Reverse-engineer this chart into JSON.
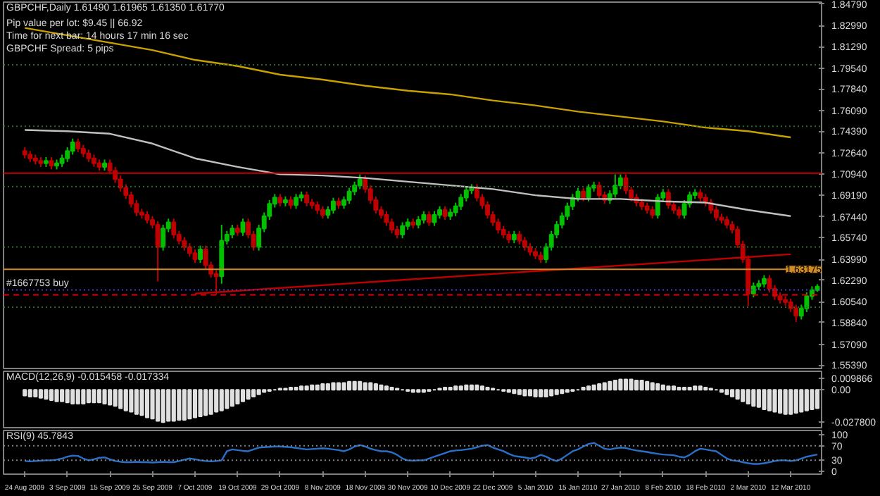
{
  "chart_data": [
    {
      "type": "candlestick",
      "title": "GBPCHF,Daily 1.61490 1.61965 1.61350 1.61770",
      "annotations": [
        "Pip value per lot: $9.45 || 66.92",
        "Time for next bar: 14 hours 17 min 16 sec",
        "GBPCHF Spread: 5 pips"
      ],
      "categories": [
        "24 Aug 2009",
        null,
        null,
        null,
        null,
        null,
        null,
        null,
        "3 Sep 2009",
        null,
        null,
        null,
        null,
        null,
        null,
        null,
        "15 Sep 2009",
        null,
        null,
        null,
        null,
        null,
        null,
        null,
        "25 Sep 2009",
        null,
        null,
        null,
        null,
        null,
        null,
        null,
        "7 Oct 2009",
        null,
        null,
        null,
        null,
        null,
        null,
        null,
        "19 Oct 2009",
        null,
        null,
        null,
        null,
        null,
        null,
        null,
        "29 Oct 2009",
        null,
        null,
        null,
        null,
        null,
        null,
        null,
        "8 Nov 2009",
        null,
        null,
        null,
        null,
        null,
        null,
        null,
        "18 Nov 2009",
        null,
        null,
        null,
        null,
        null,
        null,
        null,
        "30 Nov 2009",
        null,
        null,
        null,
        null,
        null,
        null,
        null,
        "10 Dec 2009",
        null,
        null,
        null,
        null,
        null,
        null,
        null,
        "22 Dec 2009",
        null,
        null,
        null,
        null,
        null,
        null,
        null,
        "5 Jan 2010",
        null,
        null,
        null,
        null,
        null,
        null,
        null,
        "15 Jan 2010",
        null,
        null,
        null,
        null,
        null,
        null,
        null,
        "27 Jan 2010",
        null,
        null,
        null,
        null,
        null,
        null,
        null,
        "8 Feb 2010",
        null,
        null,
        null,
        null,
        null,
        null,
        null,
        "18 Feb 2010",
        null,
        null,
        null,
        null,
        null,
        null,
        null,
        "2 Mar 2010",
        null,
        null,
        null,
        null,
        null,
        null,
        null,
        "12 Mar 2010",
        null,
        null,
        null,
        null,
        null
      ],
      "colors": [
        "#c00000",
        "#c00000",
        "#c00000",
        "#c00000",
        "#00c000",
        "#c00000",
        "#00c000",
        "#00c000",
        "#00c000",
        "#00c000",
        "#c00000",
        "#c00000",
        "#c00000",
        "#c00000",
        "#c00000",
        "#00c000",
        "#c00000",
        "#c00000",
        "#c00000",
        "#c00000",
        "#c00000",
        "#c00000",
        "#c00000",
        "#c00000",
        "#c00000",
        "#c00000",
        "#00c000",
        "#00c000",
        "#c00000",
        "#c00000",
        "#c00000",
        "#c00000",
        "#c00000",
        "#00c000",
        "#c00000",
        "#c00000",
        "#c00000",
        "#00c000",
        "#00c000",
        "#00c000",
        "#c00000",
        "#00c000",
        "#c00000",
        "#c00000",
        "#00c000",
        "#00c000",
        "#00c000",
        "#00c000",
        "#c00000",
        "#00c000",
        "#c00000",
        "#00c000",
        "#00c000",
        "#c00000",
        "#c00000",
        "#c00000",
        "#c00000",
        "#00c000",
        "#00c000",
        "#c00000",
        "#00c000",
        "#00c000",
        "#00c000",
        "#00c000",
        "#c00000",
        "#c00000",
        "#c00000",
        "#c00000",
        "#c00000",
        "#c00000",
        "#c00000",
        "#00c000",
        "#00c000",
        "#c00000",
        "#00c000",
        "#00c000",
        "#c00000",
        "#00c000",
        "#00c000",
        "#c00000",
        "#00c000",
        "#00c000",
        "#00c000",
        "#00c000",
        "#00c000",
        "#c00000",
        "#c00000",
        "#c00000",
        "#c00000",
        "#c00000",
        "#c00000",
        "#c00000",
        "#00c000",
        "#c00000",
        "#c00000",
        "#c00000",
        "#c00000",
        "#c00000",
        "#00c000",
        "#00c000",
        "#00c000",
        "#00c000",
        "#00c000",
        "#00c000",
        "#00c000",
        "#c00000",
        "#00c000",
        "#00c000",
        "#c00000",
        "#c00000",
        "#00c000",
        "#00c000",
        "#00c000",
        "#c00000",
        "#c00000",
        "#c00000",
        "#c00000",
        "#c00000",
        "#c00000",
        "#00c000",
        "#00c000",
        "#c00000",
        "#c00000",
        "#c00000",
        "#00c000",
        "#00c000",
        "#00c000",
        "#c00000",
        "#c00000",
        "#c00000",
        "#c00000",
        "#c00000",
        "#c00000",
        "#c00000",
        "#c00000",
        "#c00000",
        "#c00000",
        "#00c000",
        "#00c000",
        "#00c000",
        "#c00000",
        "#c00000",
        "#c00000",
        "#c00000",
        "#c00000",
        "#c00000",
        "#00c000",
        "#00c000",
        "#00c000",
        "#00c000"
      ],
      "ohlc": [
        [
          1.728,
          1.731,
          1.722,
          1.725
        ],
        [
          1.725,
          1.728,
          1.719,
          1.722
        ],
        [
          1.722,
          1.725,
          1.717,
          1.72
        ],
        [
          1.72,
          1.723,
          1.715,
          1.718
        ],
        [
          1.718,
          1.723,
          1.715,
          1.72
        ],
        [
          1.72,
          1.723,
          1.713,
          1.716
        ],
        [
          1.716,
          1.721,
          1.713,
          1.718
        ],
        [
          1.718,
          1.725,
          1.715,
          1.722
        ],
        [
          1.722,
          1.731,
          1.719,
          1.728
        ],
        [
          1.728,
          1.738,
          1.725,
          1.735
        ],
        [
          1.735,
          1.738,
          1.727,
          1.73
        ],
        [
          1.73,
          1.733,
          1.723,
          1.726
        ],
        [
          1.726,
          1.729,
          1.719,
          1.722
        ],
        [
          1.722,
          1.725,
          1.715,
          1.718
        ],
        [
          1.718,
          1.721,
          1.712,
          1.715
        ],
        [
          1.715,
          1.721,
          1.712,
          1.718
        ],
        [
          1.718,
          1.721,
          1.709,
          1.712
        ],
        [
          1.712,
          1.715,
          1.702,
          1.705
        ],
        [
          1.705,
          1.708,
          1.695,
          1.698
        ],
        [
          1.698,
          1.701,
          1.689,
          1.692
        ],
        [
          1.692,
          1.695,
          1.682,
          1.685
        ],
        [
          1.685,
          1.688,
          1.675,
          1.678
        ],
        [
          1.678,
          1.681,
          1.673,
          1.676
        ],
        [
          1.676,
          1.679,
          1.669,
          1.672
        ],
        [
          1.672,
          1.675,
          1.665,
          1.668
        ],
        [
          1.668,
          1.671,
          1.622,
          1.65
        ],
        [
          1.65,
          1.668,
          1.647,
          1.665
        ],
        [
          1.665,
          1.673,
          1.662,
          1.67
        ],
        [
          1.67,
          1.673,
          1.657,
          1.66
        ],
        [
          1.66,
          1.663,
          1.652,
          1.655
        ],
        [
          1.655,
          1.658,
          1.647,
          1.65
        ],
        [
          1.65,
          1.653,
          1.642,
          1.645
        ],
        [
          1.645,
          1.648,
          1.637,
          1.64
        ],
        [
          1.64,
          1.651,
          1.637,
          1.648
        ],
        [
          1.648,
          1.651,
          1.632,
          1.635
        ],
        [
          1.635,
          1.638,
          1.625,
          1.628
        ],
        [
          1.628,
          1.631,
          1.611,
          1.626
        ],
        [
          1.626,
          1.668,
          1.62,
          1.655
        ],
        [
          1.655,
          1.663,
          1.652,
          1.66
        ],
        [
          1.66,
          1.668,
          1.657,
          1.665
        ],
        [
          1.665,
          1.668,
          1.659,
          1.662
        ],
        [
          1.662,
          1.673,
          1.659,
          1.67
        ],
        [
          1.67,
          1.673,
          1.657,
          1.66
        ],
        [
          1.66,
          1.663,
          1.647,
          1.65
        ],
        [
          1.65,
          1.668,
          1.647,
          1.665
        ],
        [
          1.665,
          1.678,
          1.662,
          1.675
        ],
        [
          1.675,
          1.688,
          1.672,
          1.685
        ],
        [
          1.685,
          1.693,
          1.682,
          1.69
        ],
        [
          1.69,
          1.693,
          1.683,
          1.686
        ],
        [
          1.686,
          1.691,
          1.683,
          1.688
        ],
        [
          1.688,
          1.691,
          1.681,
          1.684
        ],
        [
          1.684,
          1.693,
          1.681,
          1.69
        ],
        [
          1.69,
          1.695,
          1.687,
          1.692
        ],
        [
          1.692,
          1.695,
          1.683,
          1.686
        ],
        [
          1.686,
          1.689,
          1.681,
          1.684
        ],
        [
          1.684,
          1.687,
          1.677,
          1.68
        ],
        [
          1.68,
          1.683,
          1.673,
          1.676
        ],
        [
          1.676,
          1.683,
          1.673,
          1.68
        ],
        [
          1.68,
          1.69,
          1.677,
          1.687
        ],
        [
          1.687,
          1.69,
          1.681,
          1.684
        ],
        [
          1.684,
          1.691,
          1.681,
          1.688
        ],
        [
          1.688,
          1.698,
          1.685,
          1.695
        ],
        [
          1.695,
          1.703,
          1.692,
          1.7
        ],
        [
          1.7,
          1.709,
          1.697,
          1.705
        ],
        [
          1.705,
          1.708,
          1.694,
          1.697
        ],
        [
          1.697,
          1.7,
          1.685,
          1.688
        ],
        [
          1.688,
          1.691,
          1.677,
          1.68
        ],
        [
          1.68,
          1.683,
          1.673,
          1.676
        ],
        [
          1.676,
          1.679,
          1.667,
          1.67
        ],
        [
          1.67,
          1.673,
          1.661,
          1.664
        ],
        [
          1.664,
          1.667,
          1.657,
          1.66
        ],
        [
          1.66,
          1.67,
          1.657,
          1.667
        ],
        [
          1.667,
          1.673,
          1.664,
          1.67
        ],
        [
          1.67,
          1.673,
          1.665,
          1.668
        ],
        [
          1.668,
          1.675,
          1.665,
          1.672
        ],
        [
          1.672,
          1.679,
          1.669,
          1.676
        ],
        [
          1.676,
          1.679,
          1.667,
          1.67
        ],
        [
          1.67,
          1.679,
          1.667,
          1.676
        ],
        [
          1.676,
          1.683,
          1.673,
          1.68
        ],
        [
          1.68,
          1.683,
          1.672,
          1.675
        ],
        [
          1.675,
          1.681,
          1.672,
          1.678
        ],
        [
          1.678,
          1.686,
          1.675,
          1.683
        ],
        [
          1.683,
          1.693,
          1.68,
          1.69
        ],
        [
          1.69,
          1.699,
          1.687,
          1.696
        ],
        [
          1.696,
          1.701,
          1.693,
          1.698
        ],
        [
          1.698,
          1.701,
          1.687,
          1.69
        ],
        [
          1.69,
          1.693,
          1.681,
          1.684
        ],
        [
          1.684,
          1.687,
          1.673,
          1.676
        ],
        [
          1.676,
          1.679,
          1.667,
          1.67
        ],
        [
          1.67,
          1.673,
          1.661,
          1.664
        ],
        [
          1.664,
          1.667,
          1.657,
          1.66
        ],
        [
          1.66,
          1.663,
          1.653,
          1.656
        ],
        [
          1.656,
          1.663,
          1.653,
          1.66
        ],
        [
          1.66,
          1.663,
          1.652,
          1.655
        ],
        [
          1.655,
          1.658,
          1.647,
          1.65
        ],
        [
          1.65,
          1.653,
          1.643,
          1.646
        ],
        [
          1.646,
          1.649,
          1.64,
          1.643
        ],
        [
          1.643,
          1.646,
          1.637,
          1.64
        ],
        [
          1.64,
          1.653,
          1.637,
          1.65
        ],
        [
          1.65,
          1.663,
          1.647,
          1.66
        ],
        [
          1.66,
          1.671,
          1.657,
          1.668
        ],
        [
          1.668,
          1.678,
          1.665,
          1.675
        ],
        [
          1.675,
          1.686,
          1.672,
          1.683
        ],
        [
          1.683,
          1.693,
          1.68,
          1.69
        ],
        [
          1.69,
          1.698,
          1.687,
          1.695
        ],
        [
          1.695,
          1.698,
          1.687,
          1.69
        ],
        [
          1.69,
          1.701,
          1.687,
          1.698
        ],
        [
          1.698,
          1.703,
          1.695,
          1.7
        ],
        [
          1.7,
          1.703,
          1.689,
          1.692
        ],
        [
          1.692,
          1.695,
          1.685,
          1.688
        ],
        [
          1.688,
          1.696,
          1.685,
          1.693
        ],
        [
          1.693,
          1.709,
          1.69,
          1.7
        ],
        [
          1.7,
          1.709,
          1.697,
          1.706
        ],
        [
          1.706,
          1.709,
          1.693,
          1.696
        ],
        [
          1.696,
          1.699,
          1.687,
          1.69
        ],
        [
          1.69,
          1.693,
          1.683,
          1.686
        ],
        [
          1.686,
          1.689,
          1.68,
          1.683
        ],
        [
          1.683,
          1.686,
          1.677,
          1.68
        ],
        [
          1.68,
          1.683,
          1.673,
          1.676
        ],
        [
          1.676,
          1.693,
          1.673,
          1.69
        ],
        [
          1.69,
          1.697,
          1.687,
          1.694
        ],
        [
          1.694,
          1.697,
          1.681,
          1.684
        ],
        [
          1.684,
          1.687,
          1.677,
          1.68
        ],
        [
          1.68,
          1.683,
          1.673,
          1.676
        ],
        [
          1.676,
          1.688,
          1.673,
          1.685
        ],
        [
          1.685,
          1.695,
          1.682,
          1.692
        ],
        [
          1.692,
          1.697,
          1.689,
          1.694
        ],
        [
          1.694,
          1.697,
          1.687,
          1.69
        ],
        [
          1.69,
          1.693,
          1.683,
          1.686
        ],
        [
          1.686,
          1.689,
          1.677,
          1.68
        ],
        [
          1.68,
          1.683,
          1.671,
          1.674
        ],
        [
          1.674,
          1.677,
          1.669,
          1.672
        ],
        [
          1.672,
          1.675,
          1.665,
          1.668
        ],
        [
          1.668,
          1.671,
          1.661,
          1.664
        ],
        [
          1.664,
          1.667,
          1.649,
          1.652
        ],
        [
          1.652,
          1.655,
          1.637,
          1.64
        ],
        [
          1.64,
          1.643,
          1.602,
          1.612
        ],
        [
          1.612,
          1.621,
          1.609,
          1.618
        ],
        [
          1.618,
          1.623,
          1.615,
          1.62
        ],
        [
          1.62,
          1.627,
          1.617,
          1.624
        ],
        [
          1.624,
          1.627,
          1.613,
          1.616
        ],
        [
          1.616,
          1.619,
          1.607,
          1.61
        ],
        [
          1.61,
          1.613,
          1.604,
          1.607
        ],
        [
          1.607,
          1.61,
          1.602,
          1.605
        ],
        [
          1.605,
          1.608,
          1.597,
          1.6
        ],
        [
          1.6,
          1.603,
          1.589,
          1.594
        ],
        [
          1.594,
          1.603,
          1.591,
          1.6
        ],
        [
          1.6,
          1.613,
          1.597,
          1.61
        ],
        [
          1.61,
          1.618,
          1.607,
          1.6149
        ],
        [
          1.6149,
          1.61965,
          1.6135,
          1.6177
        ]
      ],
      "series": [
        {
          "type": "line",
          "color": "#c8a000",
          "x": [
            "24 Aug 2009",
            "3 Sep 2009",
            "15 Sep 2009",
            "25 Sep 2009",
            "7 Oct 2009",
            "19 Oct 2009",
            "29 Oct 2009",
            "8 Nov 2009",
            "18 Nov 2009",
            "30 Nov 2009",
            "10 Dec 2009",
            "22 Dec 2009",
            "5 Jan 2010",
            "15 Jan 2010",
            "27 Jan 2010",
            "8 Feb 2010",
            "18 Feb 2010",
            "2 Mar 2010",
            "12 Mar 2010"
          ],
          "values": [
            1.828,
            1.822,
            1.816,
            1.81,
            1.802,
            1.797,
            1.79,
            1.786,
            1.781,
            1.777,
            1.774,
            1.769,
            1.765,
            1.76,
            1.756,
            1.752,
            1.747,
            1.744,
            1.739
          ]
        },
        {
          "type": "line",
          "color": "#c0c0c0",
          "x": [
            "24 Aug 2009",
            "3 Sep 2009",
            "15 Sep 2009",
            "25 Sep 2009",
            "7 Oct 2009",
            "19 Oct 2009",
            "29 Oct 2009",
            "8 Nov 2009",
            "18 Nov 2009",
            "30 Nov 2009",
            "10 Dec 2009",
            "22 Dec 2009",
            "5 Jan 2010",
            "15 Jan 2010",
            "27 Jan 2010",
            "8 Feb 2010",
            "18 Feb 2010",
            "2 Mar 2010",
            "12 Mar 2010"
          ],
          "values": [
            1.745,
            1.744,
            1.742,
            1.734,
            1.722,
            1.715,
            1.709,
            1.708,
            1.706,
            1.703,
            1.7,
            1.697,
            1.692,
            1.689,
            1.689,
            1.687,
            1.686,
            1.68,
            1.675
          ]
        },
        {
          "type": "line",
          "color": "#c00000",
          "x": [
            "7 Oct 2009",
            "12 Mar 2010"
          ],
          "values": [
            1.612,
            1.644
          ]
        }
      ],
      "ref_lines": [
        {
          "axis": "y",
          "value": 1.7099,
          "color": "#c00000",
          "line_style": "solid"
        },
        {
          "axis": "y",
          "value": 1.63175,
          "label": "1.63175",
          "color": "#d08c20",
          "line_style": "solid"
        },
        {
          "axis": "y",
          "value": 1.615,
          "label": "#1667753 buy",
          "color": "#4040c0",
          "line_style": "dotted"
        },
        {
          "axis": "y",
          "value": 1.611,
          "color": "#e00000",
          "line_style": "dashed"
        },
        {
          "axis": "y",
          "value": 1.798,
          "color": "#2a6a2a",
          "line_style": "dotted"
        },
        {
          "axis": "y",
          "value": 1.748,
          "color": "#2a6a2a",
          "line_style": "dotted"
        },
        {
          "axis": "y",
          "value": 1.699,
          "color": "#2a6a2a",
          "line_style": "dotted"
        },
        {
          "axis": "y",
          "value": 1.65,
          "color": "#2a6a2a",
          "line_style": "dotted"
        },
        {
          "axis": "y",
          "value": 1.601,
          "color": "#2a6a2a",
          "line_style": "dotted"
        }
      ],
      "ylim": [
        1.55,
        1.849
      ],
      "yticks": [
        {
          "value": 1.8479,
          "label": "1.84790"
        },
        {
          "value": 1.8299,
          "label": "1.82990"
        },
        {
          "value": 1.8129,
          "label": "1.81290"
        },
        {
          "value": 1.7954,
          "label": "1.79540"
        },
        {
          "value": 1.7784,
          "label": "1.77840"
        },
        {
          "value": 1.7609,
          "label": "1.76090"
        },
        {
          "value": 1.7439,
          "label": "1.74390"
        },
        {
          "value": 1.7264,
          "label": "1.72640"
        },
        {
          "value": 1.7094,
          "label": "1.70940"
        },
        {
          "value": 1.6919,
          "label": "1.69190"
        },
        {
          "value": 1.6744,
          "label": "1.67440"
        },
        {
          "value": 1.6574,
          "label": "1.65740"
        },
        {
          "value": 1.6399,
          "label": "1.63990"
        },
        {
          "value": 1.6229,
          "label": "1.62290"
        },
        {
          "value": 1.6054,
          "label": "1.60540"
        },
        {
          "value": 1.5884,
          "label": "1.58840"
        },
        {
          "value": 1.5709,
          "label": "1.57090"
        },
        {
          "value": 1.5539,
          "label": "1.55390"
        }
      ],
      "tick_labels": "y"
    },
    {
      "type": "bar",
      "title": "MACD(12,26,9) -0.015458 -0.017334",
      "categories": [
        "24 Aug 2009",
        null,
        null,
        null,
        null,
        null,
        null,
        null,
        "3 Sep 2009",
        null,
        null,
        null,
        null,
        null,
        null,
        null,
        "15 Sep 2009",
        null,
        null,
        null,
        null,
        null,
        null,
        null,
        "25 Sep 2009",
        null,
        null,
        null,
        null,
        null,
        null,
        null,
        "7 Oct 2009",
        null,
        null,
        null,
        null,
        null,
        null,
        null,
        "19 Oct 2009",
        null,
        null,
        null,
        null,
        null,
        null,
        null,
        "29 Oct 2009",
        null,
        null,
        null,
        null,
        null,
        null,
        null,
        "8 Nov 2009",
        null,
        null,
        null,
        null,
        null,
        null,
        null,
        "18 Nov 2009",
        null,
        null,
        null,
        null,
        null,
        null,
        null,
        "30 Nov 2009",
        null,
        null,
        null,
        null,
        null,
        null,
        null,
        "10 Dec 2009",
        null,
        null,
        null,
        null,
        null,
        null,
        null,
        "22 Dec 2009",
        null,
        null,
        null,
        null,
        null,
        null,
        null,
        "5 Jan 2010",
        null,
        null,
        null,
        null,
        null,
        null,
        null,
        "15 Jan 2010",
        null,
        null,
        null,
        null,
        null,
        null,
        null,
        "27 Jan 2010",
        null,
        null,
        null,
        null,
        null,
        null,
        null,
        "8 Feb 2010",
        null,
        null,
        null,
        null,
        null,
        null,
        null,
        "18 Feb 2010",
        null,
        null,
        null,
        null,
        null,
        null,
        null,
        "2 Mar 2010",
        null,
        null,
        null,
        null,
        null,
        null,
        null,
        "12 Mar 2010",
        null,
        null,
        null,
        null,
        null
      ],
      "color": "#e0e0e0",
      "values": [
        -0.005,
        -0.006,
        -0.006,
        -0.007,
        -0.008,
        -0.009,
        -0.01,
        -0.01,
        -0.011,
        -0.012,
        -0.012,
        -0.012,
        -0.011,
        -0.011,
        -0.011,
        -0.012,
        -0.013,
        -0.014,
        -0.016,
        -0.018,
        -0.019,
        -0.021,
        -0.022,
        -0.024,
        -0.025,
        -0.027,
        -0.028,
        -0.027,
        -0.027,
        -0.026,
        -0.026,
        -0.025,
        -0.024,
        -0.023,
        -0.022,
        -0.021,
        -0.019,
        -0.018,
        -0.016,
        -0.014,
        -0.012,
        -0.01,
        -0.008,
        -0.006,
        -0.004,
        -0.002,
        -0.001,
        0.0,
        0.001,
        0.001,
        0.002,
        0.002,
        0.003,
        0.003,
        0.004,
        0.004,
        0.005,
        0.005,
        0.006,
        0.006,
        0.006,
        0.007,
        0.007,
        0.007,
        0.006,
        0.006,
        0.005,
        0.004,
        0.003,
        0.002,
        0.001,
        0.0,
        -0.001,
        -0.002,
        -0.002,
        -0.002,
        -0.001,
        0.0,
        0.001,
        0.002,
        0.002,
        0.003,
        0.003,
        0.004,
        0.004,
        0.004,
        0.003,
        0.002,
        0.001,
        0.0,
        -0.001,
        -0.002,
        -0.003,
        -0.004,
        -0.005,
        -0.005,
        -0.006,
        -0.006,
        -0.006,
        -0.005,
        -0.004,
        -0.003,
        -0.002,
        -0.001,
        0.0,
        0.002,
        0.003,
        0.004,
        0.005,
        0.006,
        0.007,
        0.008,
        0.009,
        0.009,
        0.009,
        0.008,
        0.008,
        0.007,
        0.006,
        0.005,
        0.004,
        0.003,
        0.003,
        0.002,
        0.002,
        0.002,
        0.003,
        0.003,
        0.002,
        0.001,
        0.0,
        -0.002,
        -0.004,
        -0.006,
        -0.008,
        -0.01,
        -0.012,
        -0.014,
        -0.015,
        -0.017,
        -0.018,
        -0.019,
        -0.02,
        -0.021,
        -0.021,
        -0.02,
        -0.019,
        -0.018,
        -0.017,
        -0.016
      ],
      "ylim": [
        -0.034,
        0.016
      ],
      "yticks": [
        {
          "value": 0.009866,
          "label": "0.009866"
        },
        {
          "value": 0,
          "label": "0.00"
        },
        {
          "value": -0.0278,
          "label": "-0.027800"
        }
      ],
      "tick_labels": "y"
    },
    {
      "type": "line",
      "title": "RSI(9) 45.7843",
      "categories": [
        "24 Aug 2009",
        null,
        null,
        null,
        null,
        null,
        null,
        null,
        "3 Sep 2009",
        null,
        null,
        null,
        null,
        null,
        null,
        null,
        "15 Sep 2009",
        null,
        null,
        null,
        null,
        null,
        null,
        null,
        "25 Sep 2009",
        null,
        null,
        null,
        null,
        null,
        null,
        null,
        "7 Oct 2009",
        null,
        null,
        null,
        null,
        null,
        null,
        null,
        "19 Oct 2009",
        null,
        null,
        null,
        null,
        null,
        null,
        null,
        "29 Oct 2009",
        null,
        null,
        null,
        null,
        null,
        null,
        null,
        "8 Nov 2009",
        null,
        null,
        null,
        null,
        null,
        null,
        null,
        "18 Nov 2009",
        null,
        null,
        null,
        null,
        null,
        null,
        null,
        "30 Nov 2009",
        null,
        null,
        null,
        null,
        null,
        null,
        null,
        "10 Dec 2009",
        null,
        null,
        null,
        null,
        null,
        null,
        null,
        "22 Dec 2009",
        null,
        null,
        null,
        null,
        null,
        null,
        null,
        "5 Jan 2010",
        null,
        null,
        null,
        null,
        null,
        null,
        null,
        "15 Jan 2010",
        null,
        null,
        null,
        null,
        null,
        null,
        null,
        "27 Jan 2010",
        null,
        null,
        null,
        null,
        null,
        null,
        null,
        "8 Feb 2010",
        null,
        null,
        null,
        null,
        null,
        null,
        null,
        "18 Feb 2010",
        null,
        null,
        null,
        null,
        null,
        null,
        null,
        "2 Mar 2010",
        null,
        null,
        null,
        null,
        null,
        null,
        null,
        "12 Mar 2010",
        null,
        null,
        null,
        null,
        null
      ],
      "color": "#2a70c8",
      "values": [
        28,
        27,
        28,
        29,
        30,
        30,
        32,
        35,
        40,
        43,
        42,
        35,
        30,
        33,
        37,
        38,
        33,
        28,
        26,
        25,
        25,
        26,
        25,
        25,
        24,
        25,
        26,
        25,
        25,
        28,
        32,
        35,
        33,
        30,
        28,
        27,
        28,
        30,
        55,
        60,
        58,
        56,
        55,
        60,
        65,
        66,
        67,
        68,
        68,
        67,
        66,
        64,
        62,
        60,
        61,
        62,
        63,
        62,
        60,
        58,
        55,
        60,
        68,
        72,
        68,
        62,
        58,
        55,
        55,
        52,
        45,
        35,
        30,
        29,
        30,
        30,
        35,
        40,
        45,
        50,
        55,
        57,
        58,
        60,
        62,
        66,
        70,
        72,
        65,
        60,
        55,
        48,
        42,
        40,
        38,
        35,
        38,
        45,
        40,
        33,
        28,
        35,
        45,
        55,
        60,
        68,
        75,
        78,
        70,
        62,
        60,
        63,
        65,
        64,
        60,
        57,
        55,
        53,
        50,
        48,
        46,
        45,
        44,
        40,
        38,
        45,
        55,
        62,
        60,
        57,
        55,
        45,
        35,
        30,
        28,
        25,
        22,
        20,
        20,
        22,
        25,
        28,
        30,
        30,
        28,
        30,
        35,
        40,
        43,
        46
      ],
      "ref_lines": [
        {
          "axis": "y",
          "value": 70,
          "color": "#808080",
          "line_style": "dotted"
        },
        {
          "axis": "y",
          "value": 30,
          "color": "#808080",
          "line_style": "dotted"
        }
      ],
      "ylim": [
        -8,
        112
      ],
      "yticks": [
        0,
        30,
        70,
        100
      ]
    }
  ]
}
